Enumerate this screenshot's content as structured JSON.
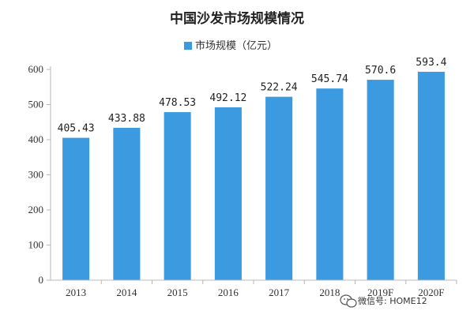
{
  "chart_data": {
    "type": "bar",
    "title": "中国沙发市场规模情况",
    "xlabel": "",
    "ylabel": "",
    "categories": [
      "2013",
      "2014",
      "2015",
      "2016",
      "2017",
      "2018",
      "2019F",
      "2020F"
    ],
    "series": [
      {
        "name": "市场规模（亿元）",
        "values": [
          405.43,
          433.88,
          478.53,
          492.12,
          522.24,
          545.74,
          570.6,
          593.4
        ],
        "labels": [
          "405.43",
          "433.88",
          "478.53",
          "492.12",
          "522.24",
          "545.74",
          "570.6",
          "593.4"
        ]
      }
    ],
    "ylim": [
      0,
      600
    ],
    "yticks": [
      0,
      100,
      200,
      300,
      400,
      500,
      600
    ],
    "grid": false,
    "legend_position": "top-center",
    "bar_color": "#3c9be0",
    "axis_color": "#b8b8b8"
  },
  "watermark": {
    "text": "微信号: HOME12",
    "logo_icon": "wechat-icon"
  }
}
